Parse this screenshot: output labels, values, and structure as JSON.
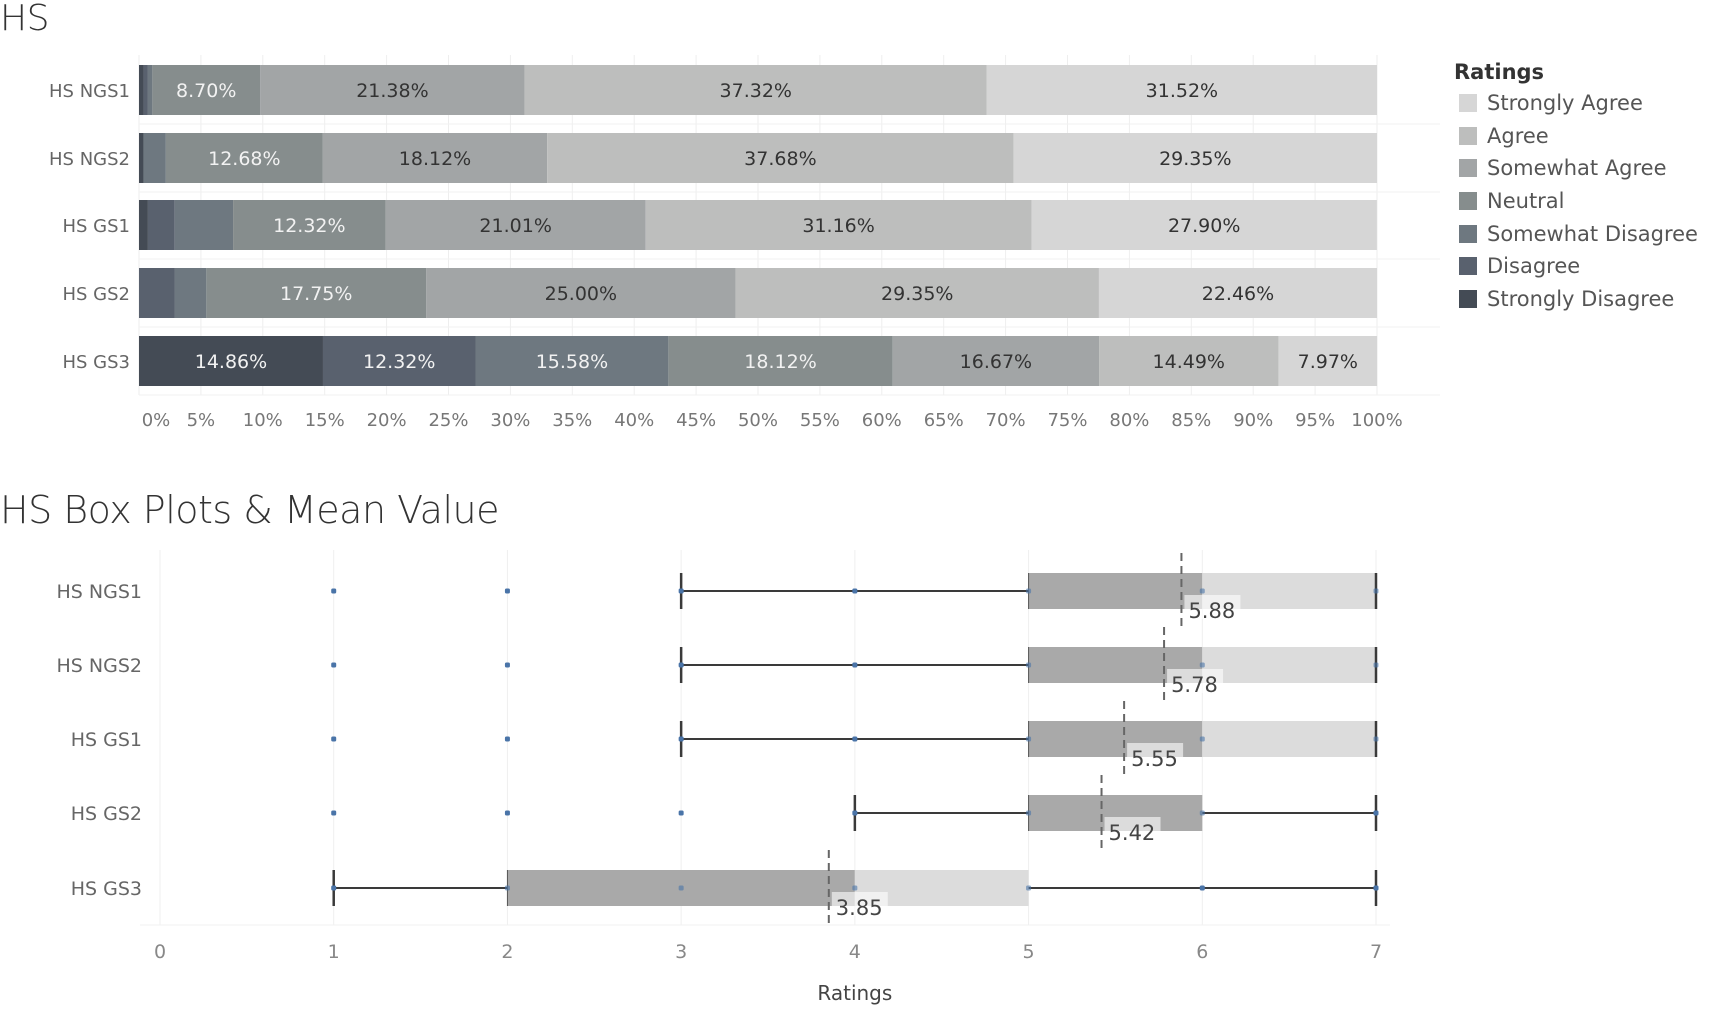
{
  "titles": {
    "top": "HS",
    "bottom": "HS Box Plots & Mean Value"
  },
  "legend": {
    "title": "Ratings",
    "items": [
      {
        "label": "Strongly Agree",
        "color": "#d6d6d6"
      },
      {
        "label": "Agree",
        "color": "#bdbebd"
      },
      {
        "label": "Somewhat Agree",
        "color": "#a2a5a6"
      },
      {
        "label": "Neutral",
        "color": "#868d8d"
      },
      {
        "label": "Somewhat Disagree",
        "color": "#6e7880"
      },
      {
        "label": "Disagree",
        "color": "#59616e"
      },
      {
        "label": "Strongly Disagree",
        "color": "#444b55"
      }
    ]
  },
  "chart_data": [
    {
      "type": "bar",
      "orientation": "horizontal-stacked-100",
      "title": "HS",
      "categories": [
        "HS NGS1",
        "HS NGS2",
        "HS GS1",
        "HS GS2",
        "HS GS3"
      ],
      "stack_order": [
        "Strongly Disagree",
        "Disagree",
        "Somewhat Disagree",
        "Neutral",
        "Somewhat Agree",
        "Agree",
        "Strongly Agree"
      ],
      "series": [
        {
          "name": "Strongly Disagree",
          "values": [
            0.36,
            0.36,
            0.72,
            0.0,
            14.86
          ],
          "labels": [
            "",
            "",
            "",
            "",
            "14.86%"
          ]
        },
        {
          "name": "Disagree",
          "values": [
            0.36,
            0.0,
            2.17,
            2.9,
            12.32
          ],
          "labels": [
            "",
            "",
            "",
            "",
            "12.32%"
          ]
        },
        {
          "name": "Somewhat Disagree",
          "values": [
            0.36,
            1.81,
            4.71,
            2.54,
            15.58
          ],
          "labels": [
            "",
            "",
            "",
            "",
            "15.58%"
          ]
        },
        {
          "name": "Neutral",
          "values": [
            8.7,
            12.68,
            12.32,
            17.75,
            18.12
          ],
          "labels": [
            "8.70%",
            "12.68%",
            "12.32%",
            "17.75%",
            "18.12%"
          ]
        },
        {
          "name": "Somewhat Agree",
          "values": [
            21.38,
            18.12,
            21.01,
            25.0,
            16.67
          ],
          "labels": [
            "21.38%",
            "18.12%",
            "21.01%",
            "25.00%",
            "16.67%"
          ]
        },
        {
          "name": "Agree",
          "values": [
            37.32,
            37.68,
            31.16,
            29.35,
            14.49
          ],
          "labels": [
            "37.32%",
            "37.68%",
            "31.16%",
            "29.35%",
            "14.49%"
          ]
        },
        {
          "name": "Strongly Agree",
          "values": [
            31.52,
            29.35,
            27.9,
            22.46,
            7.97
          ],
          "labels": [
            "31.52%",
            "29.35%",
            "27.90%",
            "22.46%",
            "7.97%"
          ]
        }
      ],
      "xlim": [
        0,
        100
      ],
      "xticks": [
        "0%",
        "5%",
        "10%",
        "15%",
        "20%",
        "25%",
        "30%",
        "35%",
        "40%",
        "45%",
        "50%",
        "55%",
        "60%",
        "65%",
        "70%",
        "75%",
        "80%",
        "85%",
        "90%",
        "95%",
        "100%"
      ],
      "xtick_values": [
        0,
        5,
        10,
        15,
        20,
        25,
        30,
        35,
        40,
        45,
        50,
        55,
        60,
        65,
        70,
        75,
        80,
        85,
        90,
        95,
        100
      ],
      "legend": "right",
      "grid": true
    },
    {
      "type": "box",
      "title": "HS Box Plots & Mean Value",
      "xlabel": "Ratings",
      "xlim": [
        0,
        7
      ],
      "xticks": [
        "0",
        "1",
        "2",
        "3",
        "4",
        "5",
        "6",
        "7"
      ],
      "xtick_values": [
        0,
        1,
        2,
        3,
        4,
        5,
        6,
        7
      ],
      "grid": true,
      "categories": [
        "HS NGS1",
        "HS NGS2",
        "HS GS1",
        "HS GS2",
        "HS GS3"
      ],
      "boxes": [
        {
          "name": "HS NGS1",
          "whisker_low": 3,
          "q1": 5,
          "median": 6,
          "q3": 7,
          "whisker_high": 7,
          "mean": 5.88,
          "mean_label": "5.88",
          "points": [
            1,
            2,
            3,
            4,
            5,
            6,
            7
          ]
        },
        {
          "name": "HS NGS2",
          "whisker_low": 3,
          "q1": 5,
          "median": 6,
          "q3": 7,
          "whisker_high": 7,
          "mean": 5.78,
          "mean_label": "5.78",
          "points": [
            1,
            2,
            3,
            4,
            5,
            6,
            7
          ]
        },
        {
          "name": "HS GS1",
          "whisker_low": 3,
          "q1": 5,
          "median": 6,
          "q3": 7,
          "whisker_high": 7,
          "mean": 5.55,
          "mean_label": "5.55",
          "points": [
            1,
            2,
            3,
            4,
            5,
            6,
            7
          ]
        },
        {
          "name": "HS GS2",
          "whisker_low": 4,
          "q1": 5,
          "median": 6,
          "q3": 6,
          "whisker_high": 7,
          "mean": 5.42,
          "mean_label": "5.42",
          "points": [
            1,
            2,
            3,
            4,
            5,
            6,
            7
          ]
        },
        {
          "name": "HS GS3",
          "whisker_low": 1,
          "q1": 2,
          "median": 4,
          "q3": 5,
          "whisker_high": 7,
          "mean": 3.85,
          "mean_label": "3.85",
          "points": [
            1,
            2,
            3,
            4,
            5,
            6,
            7
          ]
        }
      ],
      "colors": {
        "lower_box": "#a9a9a9",
        "upper_box": "#dcdcdc",
        "whisker": "#3a3a3a",
        "point": "#4a74a8",
        "mean_line": "#666666"
      }
    }
  ]
}
